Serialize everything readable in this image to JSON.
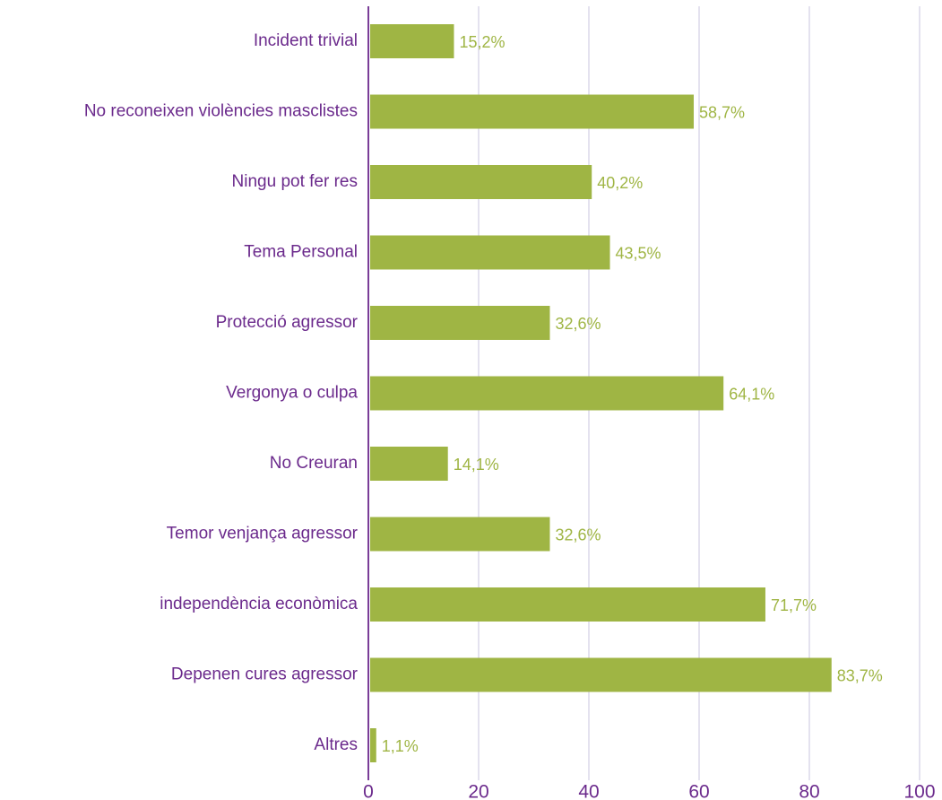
{
  "chart_data": {
    "type": "bar",
    "orientation": "horizontal",
    "categories": [
      "Incident trivial",
      "No reconeixen violències masclistes",
      "Ningu pot fer res",
      "Tema Personal",
      "Protecció agressor",
      "Vergonya o culpa",
      "No Creuran",
      "Temor venjança agressor",
      "independència econòmica",
      "Depenen cures agressor",
      "Altres"
    ],
    "values": [
      15.2,
      58.7,
      40.2,
      43.5,
      32.6,
      64.1,
      14.1,
      32.6,
      71.7,
      83.7,
      1.1
    ],
    "value_labels": [
      "15,2%",
      "58,7%",
      "40,2%",
      "43,5%",
      "32,6%",
      "64,1%",
      "14,1%",
      "32,6%",
      "71,7%",
      "83,7%",
      "1,1%"
    ],
    "color": "#9fb544",
    "xlim": [
      0,
      100
    ],
    "xticks": [
      0,
      20,
      40,
      60,
      80,
      100
    ],
    "grid": true
  }
}
